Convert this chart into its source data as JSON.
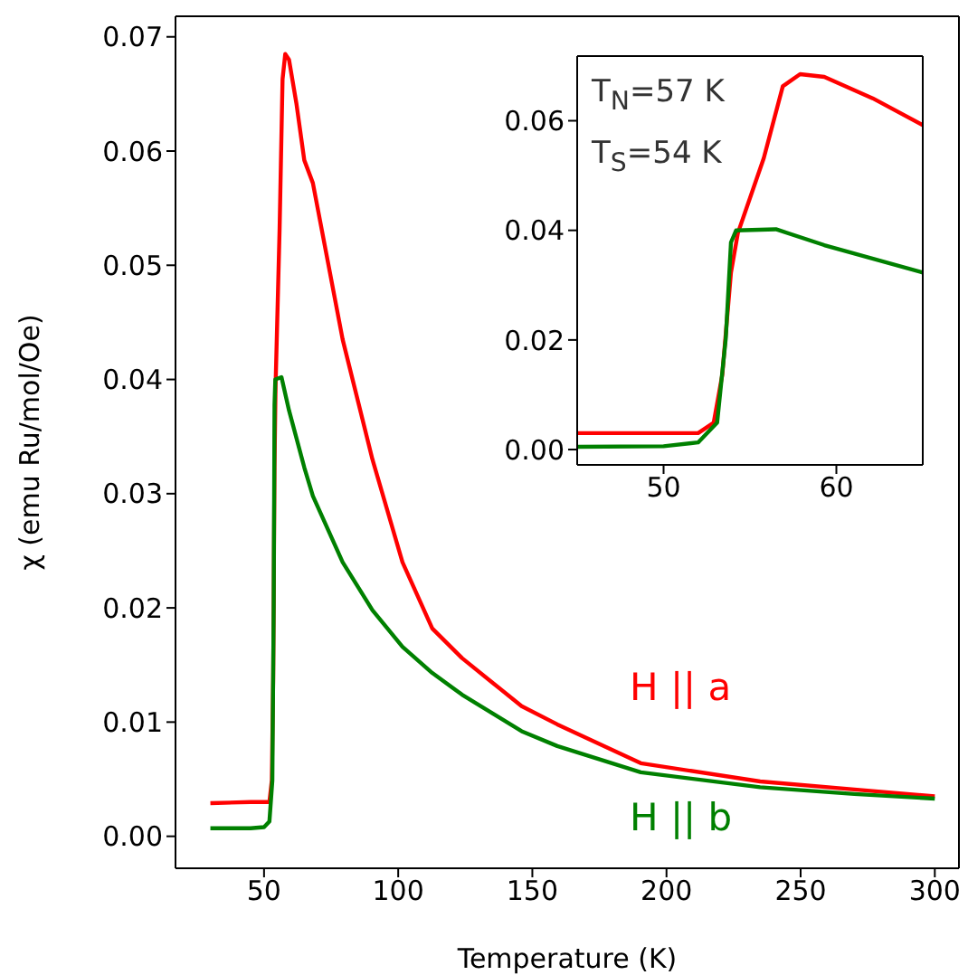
{
  "chart_data": [
    {
      "type": "line",
      "xlabel": "Temperature (K)",
      "ylabel": "χ (emu Ru/mol/Oe)",
      "xlim": [
        17,
        309
      ],
      "ylim": [
        -0.0028,
        0.0718
      ],
      "xticks": [
        50,
        100,
        150,
        200,
        250,
        300
      ],
      "yticks": [
        {
          "value": 0,
          "label": "0.00"
        },
        {
          "value": 0.01,
          "label": "0.01"
        },
        {
          "value": 0.02,
          "label": "0.02"
        },
        {
          "value": 0.03,
          "label": "0.03"
        },
        {
          "value": 0.04,
          "label": "0.04"
        },
        {
          "value": 0.05,
          "label": "0.05"
        },
        {
          "value": 0.06,
          "label": "0.06"
        },
        {
          "value": 0.07,
          "label": "0.07"
        }
      ],
      "marker": "none",
      "line_style": "solid",
      "series": [
        {
          "color": "#ff0000",
          "x": [
            30,
            45,
            52,
            52.9,
            53.4,
            53.9,
            54.3,
            55.8,
            56.9,
            57.9,
            59.3,
            62.1,
            65,
            68.2,
            79.3,
            90.4,
            101.6,
            112.7,
            123.8,
            134.9,
            146,
            159.3,
            190.4,
            234.9,
            270,
            300
          ],
          "values": [
            0.0029,
            0.003,
            0.003,
            0.0049,
            0.0137,
            0.0323,
            0.0395,
            0.0532,
            0.0663,
            0.0685,
            0.068,
            0.0641,
            0.0592,
            0.0572,
            0.0435,
            0.033,
            0.024,
            0.0182,
            0.0156,
            0.0135,
            0.0114,
            0.0098,
            0.0064,
            0.0048,
            0.0041,
            0.0035
          ]
        },
        {
          "color": "#008000",
          "x": [
            30,
            45,
            50,
            52,
            53.1,
            53.6,
            53.9,
            54.2,
            56.5,
            59.3,
            65,
            68.2,
            79.3,
            90.4,
            101.6,
            112.7,
            123.8,
            146,
            159.3,
            190.4,
            234.9,
            270,
            300
          ],
          "values": [
            0.0007,
            0.0007,
            0.0008,
            0.0013,
            0.0049,
            0.0203,
            0.0378,
            0.04,
            0.0402,
            0.0373,
            0.0323,
            0.0298,
            0.024,
            0.0198,
            0.0166,
            0.0143,
            0.0124,
            0.0092,
            0.0079,
            0.0056,
            0.0043,
            0.0037,
            0.0033
          ]
        }
      ],
      "annotations": [
        "H || a",
        "H || b"
      ]
    },
    {
      "type": "line",
      "xlim": [
        45,
        65
      ],
      "ylim": [
        -0.0028,
        0.0718
      ],
      "xticks": [
        50,
        60
      ],
      "yticks": [
        {
          "value": 0,
          "label": "0.00"
        },
        {
          "value": 0.02,
          "label": "0.02"
        },
        {
          "value": 0.04,
          "label": "0.04"
        },
        {
          "value": 0.06,
          "label": "0.06"
        }
      ],
      "marker": "none",
      "line_style": "solid",
      "series": [
        {
          "color": "#ff0000",
          "x": [
            45,
            52,
            52.9,
            53.4,
            53.9,
            54.3,
            55.8,
            56.9,
            57.9,
            59.3,
            62.1,
            65
          ],
          "values": [
            0.003,
            0.003,
            0.0049,
            0.0137,
            0.0323,
            0.0395,
            0.0532,
            0.0663,
            0.0685,
            0.068,
            0.0641,
            0.0592
          ]
        },
        {
          "color": "#008000",
          "x": [
            45,
            50,
            52,
            53.1,
            53.6,
            53.9,
            54.2,
            56.5,
            59.3,
            65
          ],
          "values": [
            0.0005,
            0.0006,
            0.0013,
            0.0049,
            0.0203,
            0.0378,
            0.04,
            0.0402,
            0.0373,
            0.0323
          ]
        }
      ],
      "annotations": [
        "T$_{N}$=57 K",
        "T$_{S}$=54 K"
      ]
    }
  ]
}
